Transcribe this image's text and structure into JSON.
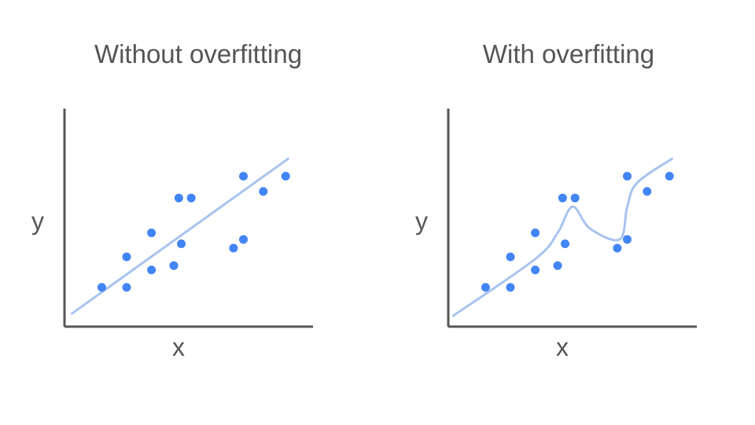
{
  "colors": {
    "axis": "#555555",
    "point": "#4285f4",
    "fit": "#a8c4ee"
  },
  "chart_data": [
    {
      "type": "scatter",
      "title": "Without overfitting",
      "xlabel": "x",
      "ylabel": "y",
      "xlim": [
        0,
        10
      ],
      "ylim": [
        0,
        10
      ],
      "points": [
        {
          "x": 1.5,
          "y": 1.8
        },
        {
          "x": 2.5,
          "y": 1.8
        },
        {
          "x": 2.5,
          "y": 3.2
        },
        {
          "x": 3.5,
          "y": 2.6
        },
        {
          "x": 3.5,
          "y": 4.3
        },
        {
          "x": 4.4,
          "y": 2.8
        },
        {
          "x": 4.7,
          "y": 3.8
        },
        {
          "x": 4.6,
          "y": 5.9
        },
        {
          "x": 5.1,
          "y": 5.9
        },
        {
          "x": 6.8,
          "y": 3.6
        },
        {
          "x": 7.2,
          "y": 4.0
        },
        {
          "x": 7.2,
          "y": 6.9
        },
        {
          "x": 8.0,
          "y": 6.2
        },
        {
          "x": 8.9,
          "y": 6.9
        }
      ],
      "fit": {
        "kind": "linear",
        "points": [
          {
            "x": 0.3,
            "y": 0.6
          },
          {
            "x": 9.0,
            "y": 7.7
          }
        ]
      }
    },
    {
      "type": "scatter",
      "title": "With overfitting",
      "xlabel": "x",
      "ylabel": "y",
      "xlim": [
        0,
        10
      ],
      "ylim": [
        0,
        10
      ],
      "points": [
        {
          "x": 1.5,
          "y": 1.8
        },
        {
          "x": 2.5,
          "y": 1.8
        },
        {
          "x": 2.5,
          "y": 3.2
        },
        {
          "x": 3.5,
          "y": 2.6
        },
        {
          "x": 3.5,
          "y": 4.3
        },
        {
          "x": 4.4,
          "y": 2.8
        },
        {
          "x": 4.7,
          "y": 3.8
        },
        {
          "x": 4.6,
          "y": 5.9
        },
        {
          "x": 5.1,
          "y": 5.9
        },
        {
          "x": 6.8,
          "y": 3.6
        },
        {
          "x": 7.2,
          "y": 4.0
        },
        {
          "x": 7.2,
          "y": 6.9
        },
        {
          "x": 8.0,
          "y": 6.2
        },
        {
          "x": 8.9,
          "y": 6.9
        }
      ],
      "fit": {
        "kind": "overfit-curve",
        "points": [
          {
            "x": 0.2,
            "y": 0.5
          },
          {
            "x": 3.5,
            "y": 3.1
          },
          {
            "x": 4.4,
            "y": 4.3
          },
          {
            "x": 5.0,
            "y": 5.5
          },
          {
            "x": 5.7,
            "y": 4.5
          },
          {
            "x": 6.9,
            "y": 4.0
          },
          {
            "x": 7.2,
            "y": 5.5
          },
          {
            "x": 7.6,
            "y": 6.6
          },
          {
            "x": 9.0,
            "y": 7.7
          }
        ]
      }
    }
  ]
}
